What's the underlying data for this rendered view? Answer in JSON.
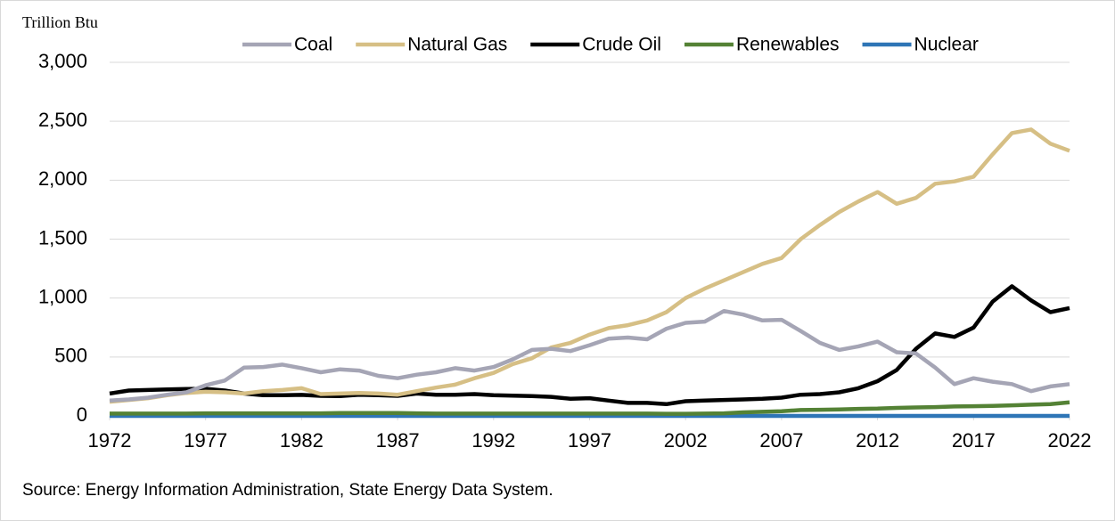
{
  "chart_data": {
    "type": "line",
    "y_label": "Trillion Btu",
    "source": "Source: Energy Information Administration, State Energy Data System.",
    "x": [
      1972,
      1973,
      1974,
      1975,
      1976,
      1977,
      1978,
      1979,
      1980,
      1981,
      1982,
      1983,
      1984,
      1985,
      1986,
      1987,
      1988,
      1989,
      1990,
      1991,
      1992,
      1993,
      1994,
      1995,
      1996,
      1997,
      1998,
      1999,
      2000,
      2001,
      2002,
      2003,
      2004,
      2005,
      2006,
      2007,
      2008,
      2009,
      2010,
      2011,
      2012,
      2013,
      2014,
      2015,
      2016,
      2017,
      2018,
      2019,
      2020,
      2021,
      2022
    ],
    "xlim": [
      1972,
      2022
    ],
    "xticks": [
      1972,
      1977,
      1982,
      1987,
      1992,
      1997,
      2002,
      2007,
      2012,
      2017,
      2022
    ],
    "ylim": [
      0,
      3000
    ],
    "yticks": [
      0,
      {
        "value": 500,
        "label": "500"
      },
      {
        "value": 1000,
        "label": "1,000"
      },
      {
        "value": 1500,
        "label": "1,500"
      },
      {
        "value": 2000,
        "label": "2,000"
      },
      {
        "value": 2500,
        "label": "2,500"
      },
      {
        "value": 3000,
        "label": "3,000"
      }
    ],
    "grid": true,
    "legend": "top",
    "series": [
      {
        "name": "Coal",
        "color": "#a5a5b5",
        "values": [
          130,
          140,
          155,
          180,
          200,
          260,
          300,
          410,
          415,
          435,
          405,
          370,
          395,
          385,
          340,
          320,
          350,
          370,
          405,
          385,
          415,
          480,
          560,
          570,
          550,
          600,
          655,
          665,
          650,
          740,
          790,
          800,
          890,
          860,
          810,
          815,
          720,
          620,
          560,
          590,
          630,
          540,
          530,
          410,
          270,
          320,
          290,
          270,
          210,
          250,
          270
        ]
      },
      {
        "name": "Natural Gas",
        "color": "#d6bf85",
        "values": [
          120,
          135,
          150,
          175,
          195,
          205,
          200,
          190,
          210,
          220,
          235,
          185,
          190,
          195,
          190,
          180,
          210,
          240,
          265,
          320,
          365,
          440,
          490,
          580,
          620,
          690,
          745,
          770,
          810,
          880,
          1000,
          1080,
          1150,
          1220,
          1290,
          1340,
          1500,
          1620,
          1730,
          1820,
          1900,
          1800,
          1850,
          1970,
          1990,
          2030,
          2220,
          2400,
          2430,
          2310,
          2250
        ]
      },
      {
        "name": "Crude Oil",
        "color": "#000000",
        "values": [
          190,
          215,
          220,
          225,
          228,
          230,
          215,
          190,
          175,
          175,
          178,
          170,
          168,
          180,
          175,
          170,
          190,
          180,
          180,
          185,
          175,
          172,
          168,
          162,
          145,
          150,
          130,
          110,
          110,
          100,
          125,
          130,
          135,
          140,
          145,
          155,
          180,
          185,
          200,
          235,
          295,
          390,
          570,
          700,
          670,
          750,
          970,
          1100,
          980,
          880,
          915
        ]
      },
      {
        "name": "Renewables",
        "color": "#548235",
        "values": [
          20,
          20,
          20,
          20,
          20,
          22,
          22,
          22,
          22,
          22,
          22,
          22,
          24,
          24,
          25,
          24,
          22,
          20,
          20,
          20,
          20,
          20,
          20,
          20,
          20,
          20,
          20,
          20,
          20,
          18,
          18,
          20,
          22,
          30,
          35,
          40,
          50,
          52,
          55,
          60,
          62,
          68,
          72,
          75,
          80,
          82,
          85,
          90,
          95,
          100,
          115
        ]
      },
      {
        "name": "Nuclear",
        "color": "#2e75b6",
        "values": [
          0,
          0,
          0,
          0,
          0,
          0,
          0,
          0,
          0,
          0,
          0,
          0,
          0,
          0,
          0,
          0,
          0,
          0,
          0,
          0,
          0,
          0,
          0,
          0,
          0,
          0,
          0,
          0,
          0,
          0,
          0,
          0,
          0,
          0,
          0,
          0,
          0,
          0,
          0,
          0,
          0,
          0,
          0,
          0,
          0,
          0,
          0,
          0,
          0,
          0,
          0
        ]
      }
    ]
  }
}
